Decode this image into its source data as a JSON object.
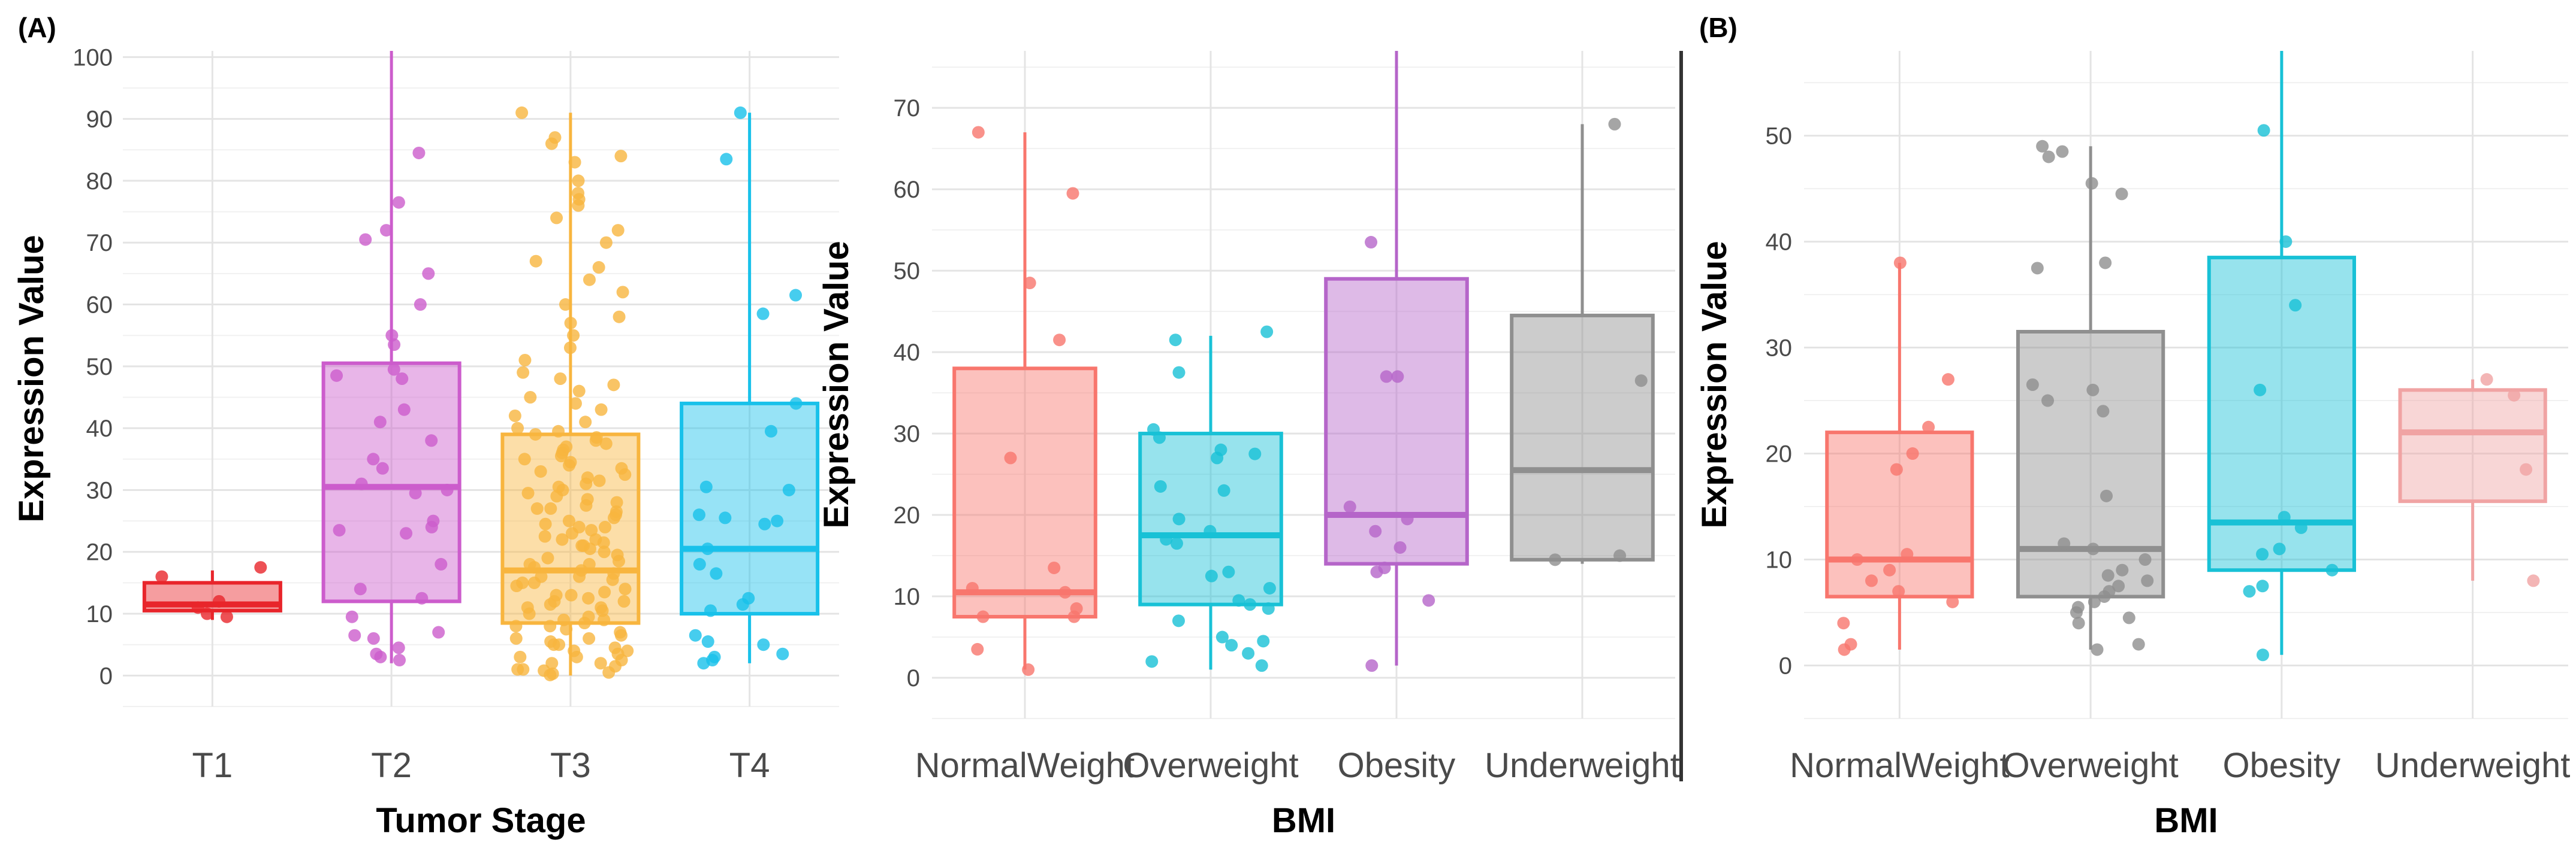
{
  "panel_labels": {
    "a": "(A)",
    "b": "(B)"
  },
  "chart_data": [
    {
      "id": "tumor",
      "type": "box",
      "panel": "(A)",
      "xlabel": "Tumor Stage",
      "ylabel": "Expression Value",
      "ylim": [
        -5,
        101
      ],
      "yticks": [
        0,
        10,
        20,
        30,
        40,
        50,
        60,
        70,
        80,
        90,
        100
      ],
      "grid": true,
      "categories": [
        "T1",
        "T2",
        "T3",
        "T4"
      ],
      "boxes": [
        {
          "name": "T1",
          "color": "#e8252b",
          "q1": 10.5,
          "median": 11.5,
          "q3": 15,
          "whisker_low": 9,
          "whisker_high": 17,
          "points": [
            17.5,
            16,
            12,
            11,
            10,
            9.5
          ]
        },
        {
          "name": "T2",
          "color": "#cc5ccc",
          "q1": 12,
          "median": 30.5,
          "q3": 50.5,
          "whisker_low": 2,
          "whisker_high": 101,
          "points": [
            84.5,
            76.5,
            72,
            70.5,
            65,
            60,
            55,
            53.5,
            49.5,
            48.5,
            48,
            43,
            41,
            38,
            35,
            33.5,
            31,
            30,
            29.5,
            25,
            24,
            23.5,
            23,
            18,
            14,
            12.5,
            9.5,
            7,
            6.5,
            6,
            4.5,
            3.5,
            3,
            2.5
          ]
        },
        {
          "name": "T3",
          "color": "#f8b53e",
          "q1": 8.5,
          "median": 17,
          "q3": 39,
          "whisker_low": 0,
          "whisker_high": 91,
          "points": [
            91,
            87,
            86,
            84,
            83,
            80,
            78,
            77,
            76,
            74,
            72,
            70,
            67,
            66,
            64,
            62,
            60,
            58,
            57,
            55,
            53,
            51,
            49,
            48,
            47,
            46,
            45,
            44,
            43,
            42,
            41,
            40,
            39.5,
            39,
            38.5,
            38,
            37.5,
            37,
            36.5,
            36,
            35.5,
            35,
            34.5,
            34,
            33.5,
            33,
            32.5,
            32,
            31.5,
            31,
            30.5,
            30,
            29.5,
            29,
            28.5,
            28,
            27.5,
            27,
            26.5,
            26,
            25.5,
            25,
            24.5,
            24,
            23.5,
            23,
            22.5,
            22,
            21.5,
            21,
            20.5,
            20,
            19.5,
            19,
            18.5,
            18,
            17.5,
            17,
            16.5,
            16,
            15.5,
            15,
            14.5,
            14,
            13.5,
            13,
            12.5,
            12,
            11.5,
            11,
            10.5,
            10,
            9.5,
            9,
            8.5,
            8,
            7.5,
            7,
            6.5,
            6,
            5.5,
            5,
            4.5,
            4,
            3.5,
            3,
            2.5,
            2,
            1.5,
            1,
            0.8,
            0.5,
            0.3,
            0.1,
            22,
            18,
            15,
            12,
            9,
            6,
            4,
            2,
            27,
            24,
            21,
            16,
            13,
            11,
            8,
            5,
            3,
            1
          ]
        },
        {
          "name": "T4",
          "color": "#18c1ea",
          "q1": 10,
          "median": 20.5,
          "q3": 44,
          "whisker_low": 2,
          "whisker_high": 91,
          "points": [
            91,
            83.5,
            61.5,
            58.5,
            44,
            39.5,
            30.5,
            30,
            26,
            25.5,
            25,
            24.5,
            20.5,
            18,
            16.5,
            12.5,
            11.5,
            10.5,
            6.5,
            5.5,
            5,
            3.5,
            3,
            2.5,
            2
          ]
        }
      ]
    },
    {
      "id": "bmiA",
      "type": "box",
      "panel": "(A)",
      "xlabel": "BMI",
      "ylabel": "Expression Value",
      "ylim": [
        -5,
        77
      ],
      "yticks": [
        0,
        10,
        20,
        30,
        40,
        50,
        60,
        70
      ],
      "grid": true,
      "categories": [
        "NormalWeight",
        "Overweight",
        "Obesity",
        "Underweight"
      ],
      "boxes": [
        {
          "name": "NormalWeight",
          "color": "#f8766d",
          "q1": 7.5,
          "median": 10.5,
          "q3": 38,
          "whisker_low": 1,
          "whisker_high": 67,
          "points": [
            67,
            59.5,
            48.5,
            41.5,
            27,
            13.5,
            11,
            10.5,
            8.5,
            7.5,
            7.5,
            3.5,
            1
          ]
        },
        {
          "name": "Overweight",
          "color": "#18c1d6",
          "q1": 9,
          "median": 17.5,
          "q3": 30,
          "whisker_low": 1,
          "whisker_high": 42,
          "points": [
            42.5,
            41.5,
            37.5,
            30.5,
            29.5,
            28,
            27.5,
            27,
            23.5,
            23,
            19.5,
            18,
            17,
            16.5,
            13,
            12.5,
            11,
            9.5,
            9,
            8.5,
            7,
            5,
            4.5,
            4,
            3,
            2,
            1.5
          ]
        },
        {
          "name": "Obesity",
          "color": "#b565c9",
          "q1": 14,
          "median": 20,
          "q3": 49,
          "whisker_low": 1.5,
          "whisker_high": 77,
          "points": [
            53.5,
            37,
            37,
            21,
            19.5,
            18,
            16,
            13.5,
            13,
            9.5,
            1.5
          ]
        },
        {
          "name": "Underweight",
          "color": "#8f8f8f",
          "q1": 14.5,
          "median": 25.5,
          "q3": 44.5,
          "whisker_low": 14,
          "whisker_high": 68,
          "points": [
            68,
            36.5,
            15,
            14.5
          ]
        }
      ]
    },
    {
      "id": "bmiB",
      "type": "box",
      "panel": "(B)",
      "xlabel": "BMI",
      "ylabel": "Expression Value",
      "ylim": [
        -5,
        58
      ],
      "yticks": [
        0,
        10,
        20,
        30,
        40,
        50
      ],
      "grid": true,
      "categories": [
        "NormalWeight",
        "Overweight",
        "Obesity",
        "Underweight"
      ],
      "boxes": [
        {
          "name": "NormalWeight",
          "color": "#f8766d",
          "q1": 6.5,
          "median": 10,
          "q3": 22,
          "whisker_low": 1.5,
          "whisker_high": 38,
          "points": [
            38,
            27,
            22.5,
            20,
            18.5,
            10.5,
            10,
            9,
            8,
            7,
            6,
            4,
            2,
            1.5
          ]
        },
        {
          "name": "Overweight",
          "color": "#8f8f8f",
          "q1": 6.5,
          "median": 11,
          "q3": 31.5,
          "whisker_low": 1.5,
          "whisker_high": 49,
          "points": [
            49,
            48.5,
            48,
            45.5,
            44.5,
            38,
            37.5,
            26.5,
            26,
            25,
            24,
            16,
            11.5,
            11,
            10,
            9,
            8.5,
            8,
            7.5,
            7,
            6.5,
            6,
            5.5,
            5,
            4.5,
            4,
            2,
            1.5
          ]
        },
        {
          "name": "Obesity",
          "color": "#18c1d6",
          "q1": 9,
          "median": 13.5,
          "q3": 38.5,
          "whisker_low": 1,
          "whisker_high": 58,
          "points": [
            50.5,
            40,
            34,
            26,
            14,
            13,
            11,
            10.5,
            9,
            7.5,
            7,
            1
          ]
        },
        {
          "name": "Underweight",
          "color": "#f0a3a3",
          "q1": 15.5,
          "median": 22,
          "q3": 26,
          "whisker_low": 8,
          "whisker_high": 27,
          "points": [
            27,
            25.5,
            18.5,
            8
          ]
        }
      ]
    }
  ]
}
